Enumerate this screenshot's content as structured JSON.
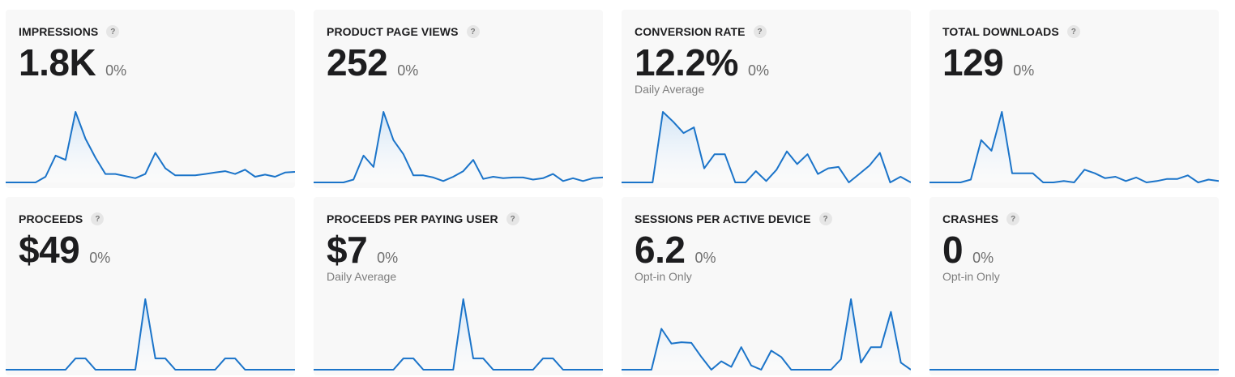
{
  "colors": {
    "line": "#1b74c9",
    "fill_top": "#cfe3f6",
    "fill_bottom": "#ffffff",
    "card_bg": "#f8f8f8"
  },
  "help_icon_glyph": "?",
  "cards": [
    {
      "title": "IMPRESSIONS",
      "value": "1.8K",
      "change": "0%",
      "subtitle": "",
      "series": [
        0,
        0,
        0,
        0,
        8,
        38,
        32,
        100,
        62,
        35,
        12,
        12,
        9,
        6,
        12,
        42,
        20,
        10,
        10,
        10,
        12,
        14,
        16,
        12,
        18,
        8,
        11,
        8,
        14,
        15
      ]
    },
    {
      "title": "PRODUCT PAGE VIEWS",
      "value": "252",
      "change": "0%",
      "subtitle": "",
      "series": [
        0,
        0,
        0,
        0,
        4,
        38,
        22,
        100,
        60,
        40,
        10,
        10,
        7,
        2,
        8,
        16,
        32,
        5,
        8,
        6,
        7,
        7,
        4,
        6,
        12,
        2,
        6,
        2,
        6,
        7
      ]
    },
    {
      "title": "CONVERSION RATE",
      "value": "12.2%",
      "change": "0%",
      "subtitle": "Daily Average",
      "series": [
        0,
        0,
        0,
        0,
        100,
        86,
        70,
        78,
        20,
        40,
        40,
        0,
        0,
        16,
        2,
        18,
        44,
        26,
        40,
        12,
        20,
        22,
        0,
        12,
        24,
        42,
        0,
        8,
        0
      ]
    },
    {
      "title": "TOTAL DOWNLOADS",
      "value": "129",
      "change": "0%",
      "subtitle": "",
      "series": [
        0,
        0,
        0,
        0,
        4,
        60,
        45,
        100,
        13,
        13,
        13,
        0,
        0,
        2,
        0,
        18,
        13,
        6,
        8,
        2,
        7,
        0,
        2,
        5,
        5,
        10,
        0,
        4,
        2
      ]
    },
    {
      "title": "PROCEEDS",
      "value": "$49",
      "change": "0%",
      "subtitle": "",
      "series": [
        0,
        0,
        0,
        0,
        0,
        0,
        0,
        16,
        16,
        0,
        0,
        0,
        0,
        0,
        100,
        16,
        16,
        0,
        0,
        0,
        0,
        0,
        16,
        16,
        0,
        0,
        0,
        0,
        0,
        0
      ]
    },
    {
      "title": "PROCEEDS PER PAYING USER",
      "value": "$7",
      "change": "0%",
      "subtitle": "Daily Average",
      "series": [
        0,
        0,
        0,
        0,
        0,
        0,
        0,
        0,
        0,
        16,
        16,
        0,
        0,
        0,
        0,
        100,
        16,
        16,
        0,
        0,
        0,
        0,
        0,
        16,
        16,
        0,
        0,
        0,
        0,
        0
      ]
    },
    {
      "title": "SESSIONS PER ACTIVE DEVICE",
      "value": "6.2",
      "change": "0%",
      "subtitle": "Opt-in Only",
      "series": [
        0,
        0,
        0,
        0,
        58,
        37,
        39,
        38,
        18,
        0,
        12,
        4,
        32,
        6,
        0,
        27,
        18,
        0,
        0,
        0,
        0,
        0,
        15,
        100,
        10,
        32,
        32,
        82,
        10,
        0
      ]
    },
    {
      "title": "CRASHES",
      "value": "0",
      "change": "0%",
      "subtitle": "Opt-in Only",
      "series": [
        0,
        0,
        0,
        0,
        0,
        0,
        0,
        0,
        0,
        0,
        0,
        0,
        0,
        0,
        0,
        0,
        0,
        0,
        0,
        0,
        0,
        0,
        0,
        0,
        0,
        0,
        0,
        0,
        0,
        0
      ]
    }
  ]
}
